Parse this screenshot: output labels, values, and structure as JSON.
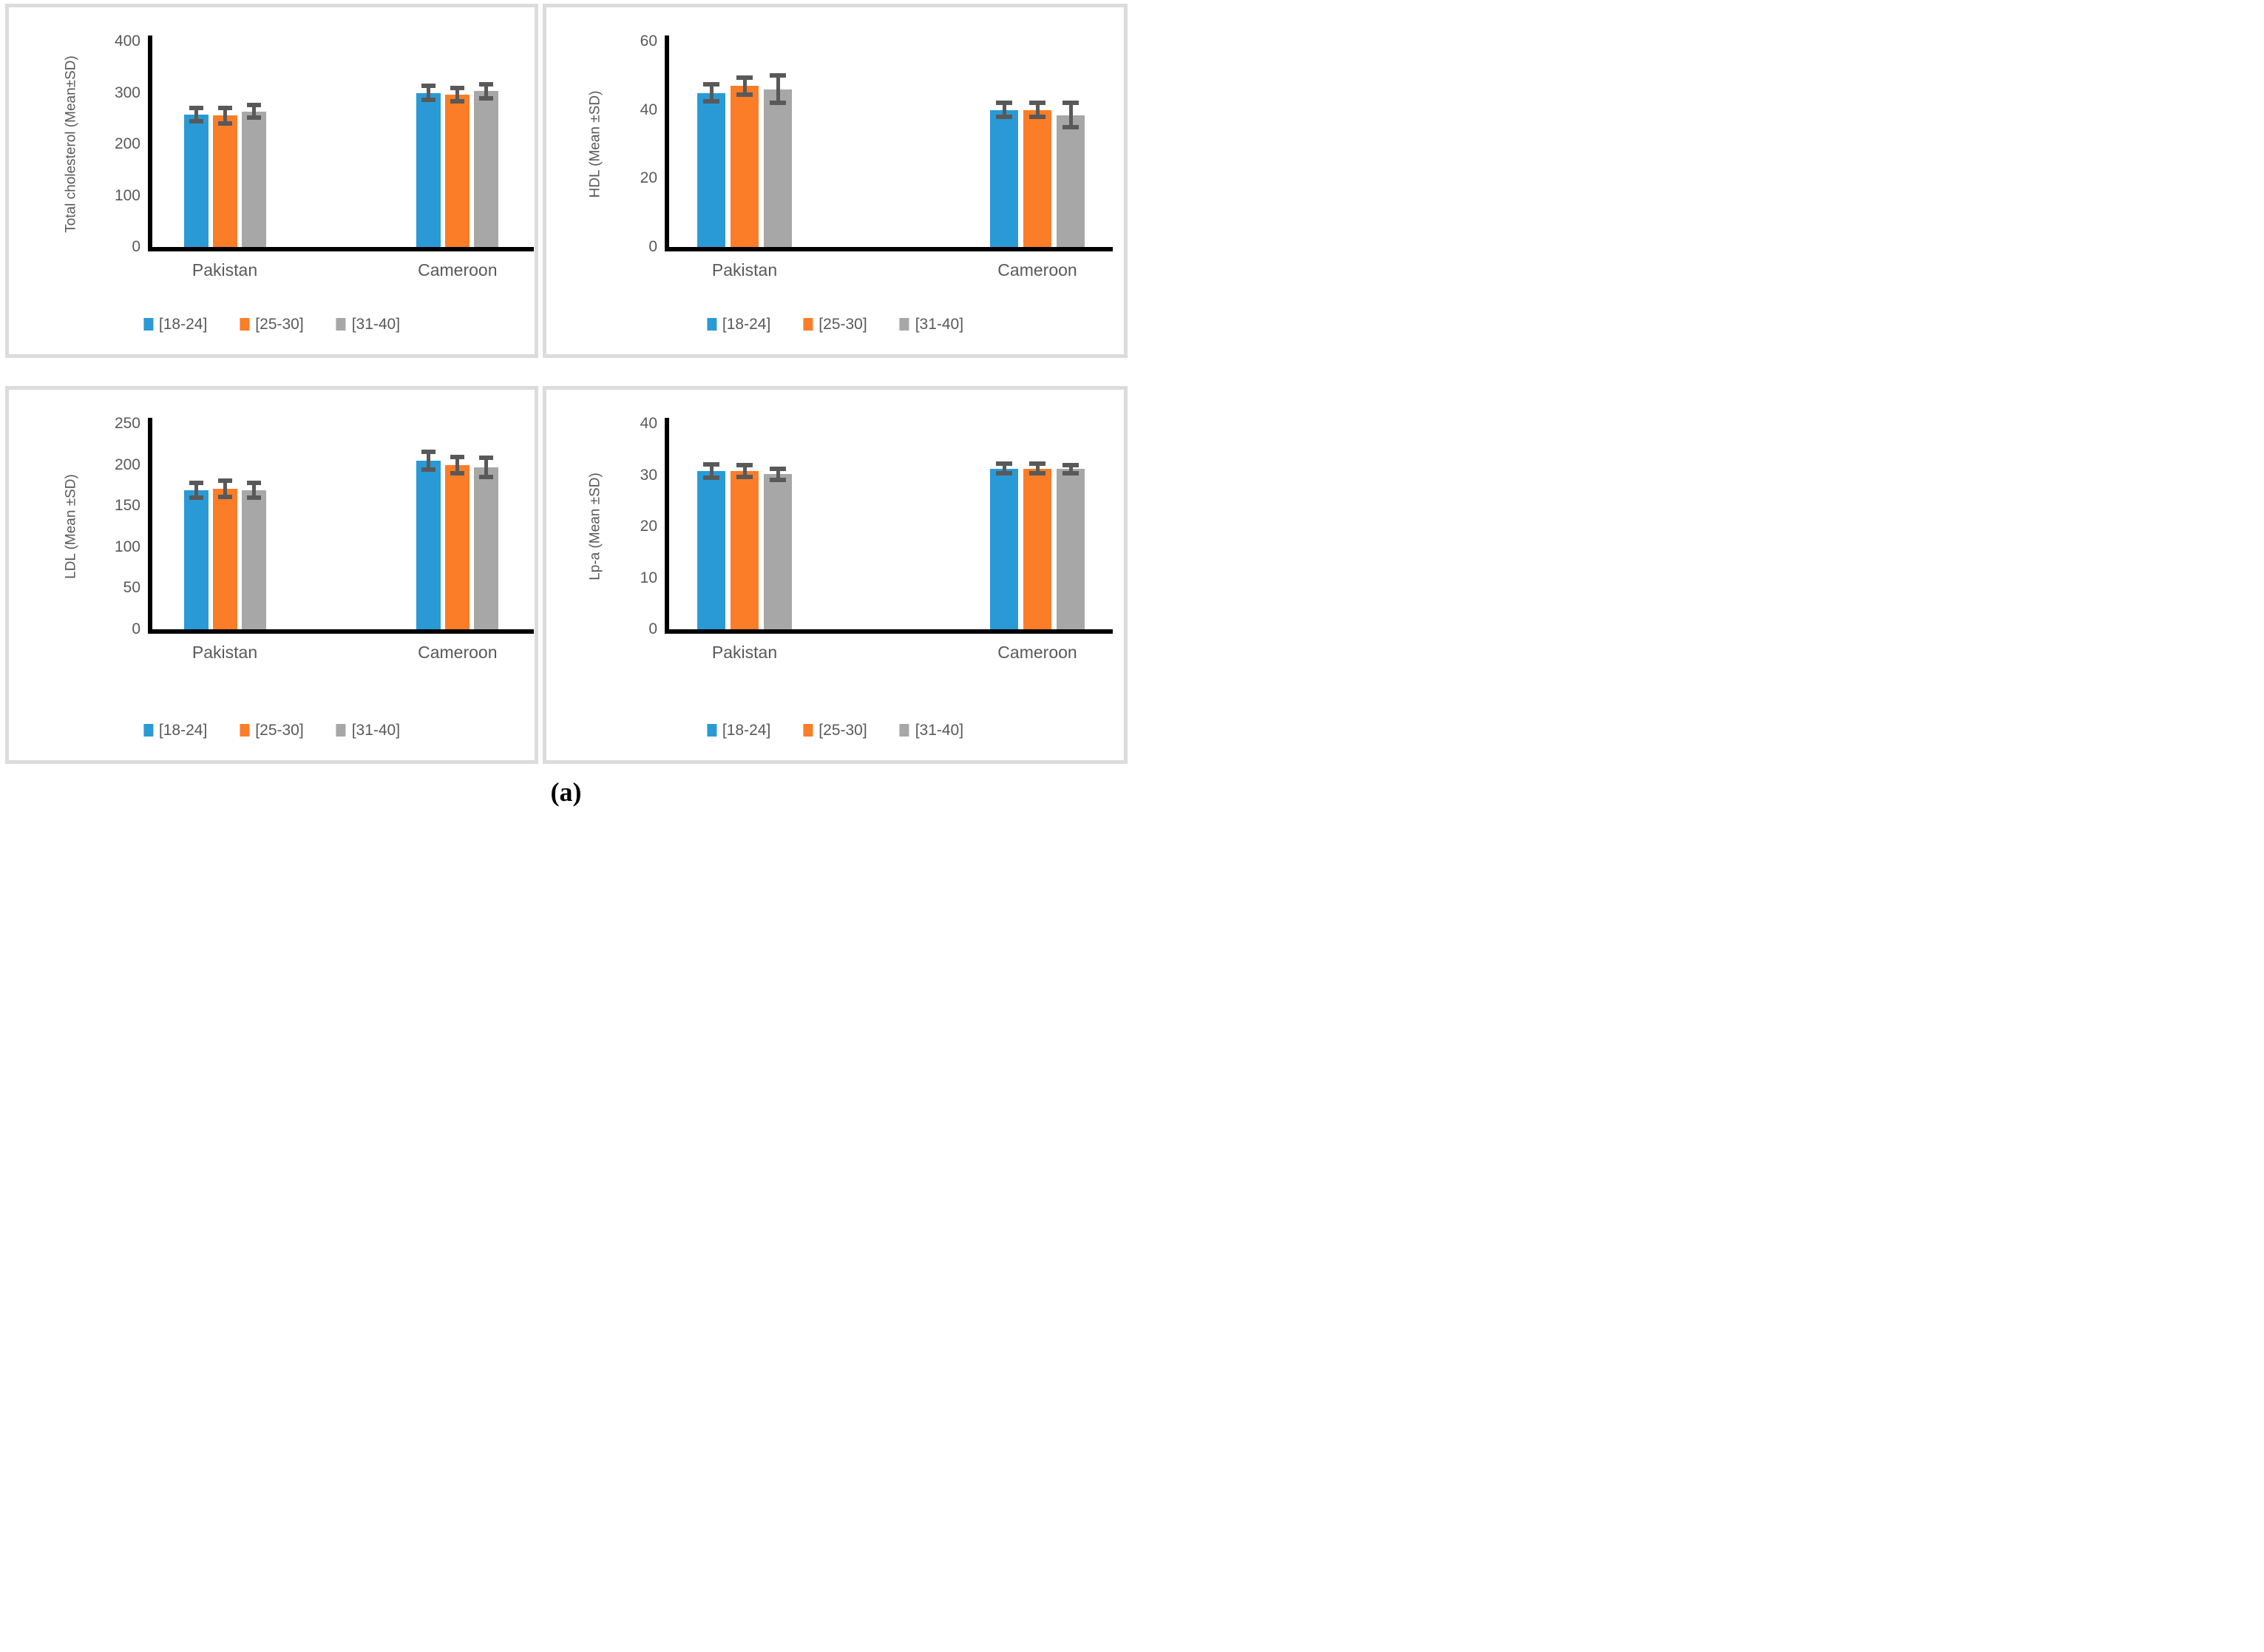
{
  "figure": {
    "caption": "(a)",
    "colors": {
      "series_blue": "#2A9AD6",
      "series_orange": "#FB7D28",
      "series_gray": "#A7A7A7",
      "error_bar": "#595959",
      "axis_line": "#000000",
      "axis_text": "#595959",
      "panel_border": "#DCDCDC"
    }
  },
  "chart_data": [
    {
      "id": "total-cholesterol",
      "type": "bar",
      "title": "",
      "xlabel": "",
      "ylabel": "Total cholesterol (Mean±SD)",
      "categories": [
        "Pakistan",
        "Cameroon"
      ],
      "ylim": [
        0,
        400
      ],
      "yticks": [
        0,
        100,
        200,
        300,
        400
      ],
      "grid": false,
      "legend_position": "bottom",
      "series": [
        {
          "name": "[18-24]",
          "color": "#2A9AD6",
          "values": [
            258,
            300
          ],
          "errors": [
            13,
            14
          ]
        },
        {
          "name": "[25-30]",
          "color": "#FB7D28",
          "values": [
            256,
            297
          ],
          "errors": [
            15,
            13
          ]
        },
        {
          "name": "[31-40]",
          "color": "#A7A7A7",
          "values": [
            264,
            303
          ],
          "errors": [
            12,
            13
          ]
        }
      ]
    },
    {
      "id": "hdl",
      "type": "bar",
      "title": "",
      "xlabel": "",
      "ylabel": "HDL (Mean ±SD)",
      "categories": [
        "Pakistan",
        "Cameroon"
      ],
      "ylim": [
        0,
        60
      ],
      "yticks": [
        0,
        20,
        40,
        60
      ],
      "grid": false,
      "legend_position": "bottom",
      "series": [
        {
          "name": "[18-24]",
          "color": "#2A9AD6",
          "values": [
            45,
            40
          ],
          "errors": [
            2.5,
            2
          ]
        },
        {
          "name": "[25-30]",
          "color": "#FB7D28",
          "values": [
            47,
            40
          ],
          "errors": [
            2.5,
            2
          ]
        },
        {
          "name": "[31-40]",
          "color": "#A7A7A7",
          "values": [
            46,
            38.5
          ],
          "errors": [
            4,
            3.5
          ]
        }
      ]
    },
    {
      "id": "ldl",
      "type": "bar",
      "title": "",
      "xlabel": "",
      "ylabel": "LDL (Mean ±SD)",
      "categories": [
        "Pakistan",
        "Cameroon"
      ],
      "ylim": [
        0,
        250
      ],
      "yticks": [
        0,
        50,
        100,
        150,
        200,
        250
      ],
      "grid": false,
      "legend_position": "bottom",
      "series": [
        {
          "name": "[18-24]",
          "color": "#2A9AD6",
          "values": [
            169,
            205
          ],
          "errors": [
            9,
            11
          ]
        },
        {
          "name": "[25-30]",
          "color": "#FB7D28",
          "values": [
            171,
            200
          ],
          "errors": [
            10,
            10
          ]
        },
        {
          "name": "[31-40]",
          "color": "#A7A7A7",
          "values": [
            169,
            197
          ],
          "errors": [
            9,
            12
          ]
        }
      ]
    },
    {
      "id": "lp-a",
      "type": "bar",
      "title": "",
      "xlabel": "",
      "ylabel": "Lp-a (Mean ±SD)",
      "categories": [
        "Pakistan",
        "Cameroon"
      ],
      "ylim": [
        0,
        40
      ],
      "yticks": [
        0,
        10,
        20,
        30,
        40
      ],
      "grid": false,
      "legend_position": "bottom",
      "series": [
        {
          "name": "[18-24]",
          "color": "#2A9AD6",
          "values": [
            30.8,
            31.3
          ],
          "errors": [
            1.3,
            0.9
          ]
        },
        {
          "name": "[25-30]",
          "color": "#FB7D28",
          "values": [
            30.8,
            31.3
          ],
          "errors": [
            1.2,
            0.9
          ]
        },
        {
          "name": "[31-40]",
          "color": "#A7A7A7",
          "values": [
            30.2,
            31.2
          ],
          "errors": [
            1.1,
            0.8
          ]
        }
      ]
    }
  ]
}
